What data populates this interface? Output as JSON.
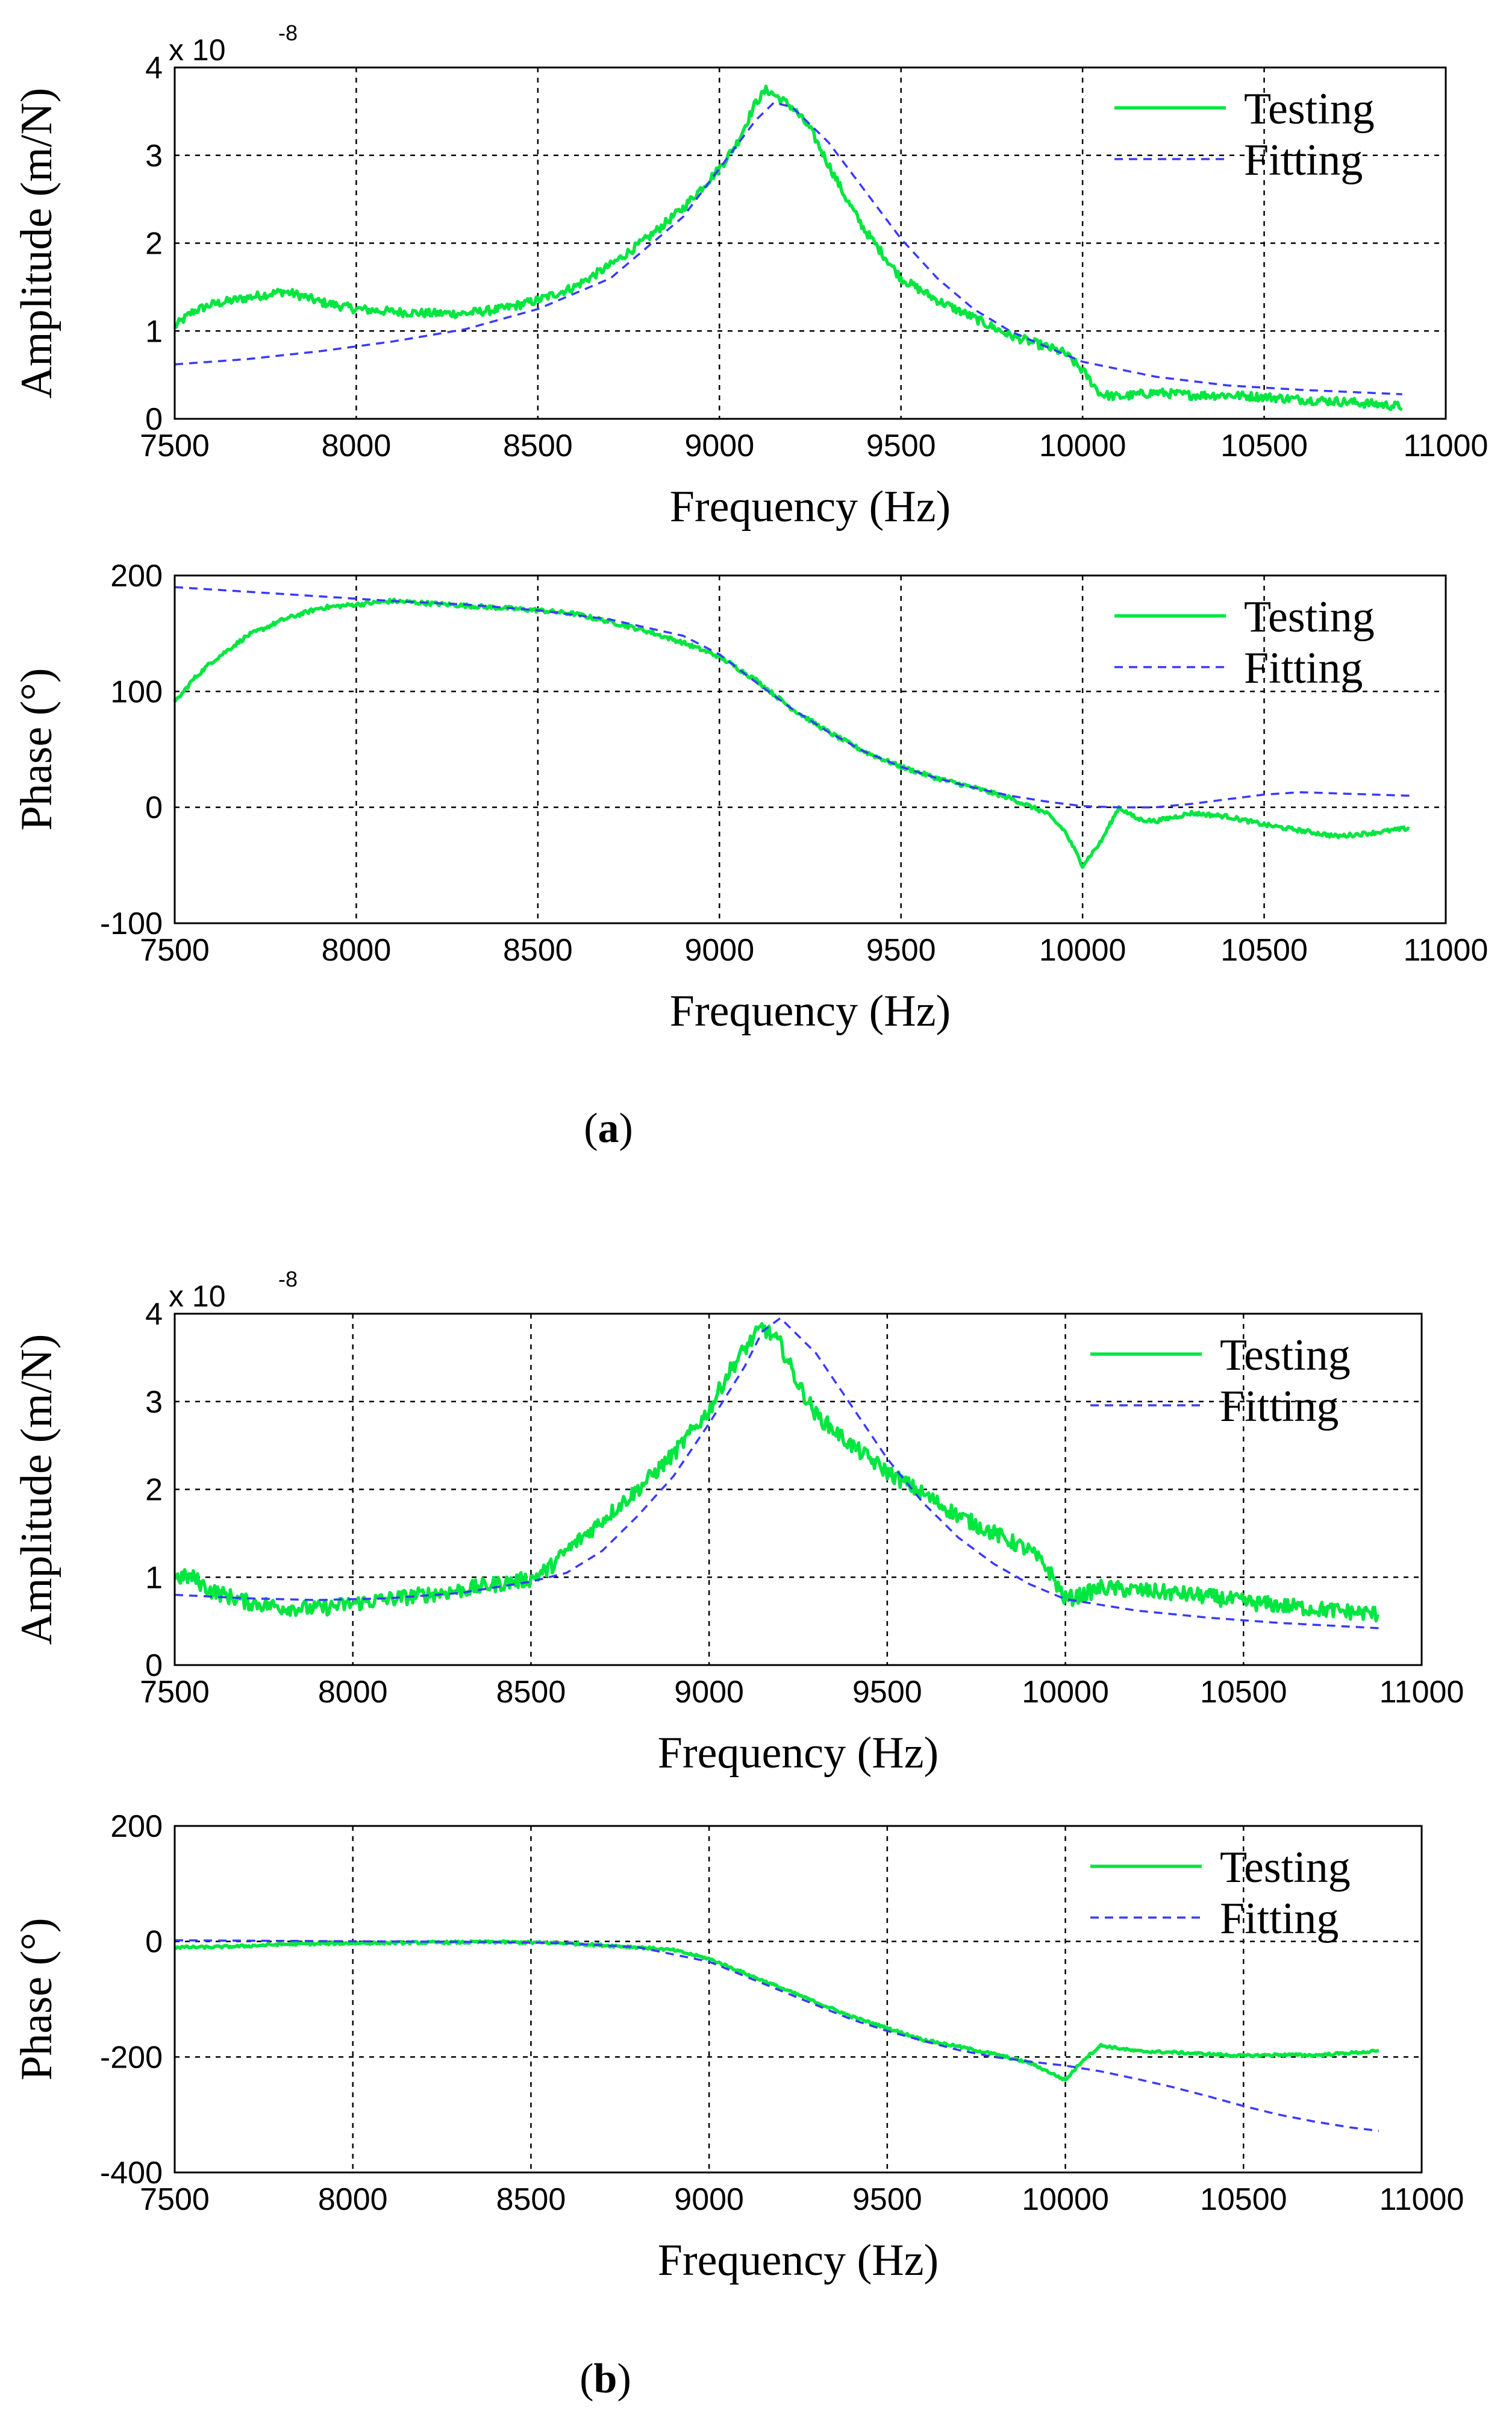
{
  "chart_data": [
    {
      "type": "line",
      "panel": "a",
      "subplot": "amplitude",
      "xlabel": "Frequency (Hz)",
      "ylabel": "Amplitude (m/N)",
      "y_exponent_label": "x 10",
      "y_exponent_power": "-8",
      "xlim": [
        7500,
        11000
      ],
      "ylim": [
        0,
        4
      ],
      "xticks": [
        "7500",
        "8000",
        "8500",
        "9000",
        "9500",
        "10000",
        "10500",
        "11000"
      ],
      "yticks": [
        "0",
        "1",
        "2",
        "3",
        "4"
      ],
      "grid": true,
      "legend_position": "top-right",
      "series": [
        {
          "name": "Testing",
          "style": "solid",
          "color": "#00e640",
          "noise": 0.05,
          "x": [
            7500,
            7550,
            7600,
            7700,
            7800,
            7850,
            7900,
            8000,
            8100,
            8200,
            8300,
            8400,
            8500,
            8600,
            8700,
            8800,
            8900,
            9000,
            9050,
            9100,
            9130,
            9200,
            9250,
            9300,
            9350,
            9400,
            9500,
            9600,
            9700,
            9800,
            9900,
            9950,
            10000,
            10050,
            10100,
            10200,
            10300,
            10400,
            10500,
            10600,
            10700,
            10800,
            10880
          ],
          "y": [
            1.05,
            1.22,
            1.3,
            1.38,
            1.45,
            1.4,
            1.33,
            1.25,
            1.22,
            1.2,
            1.2,
            1.25,
            1.35,
            1.5,
            1.75,
            2.05,
            2.4,
            2.85,
            3.15,
            3.6,
            3.75,
            3.55,
            3.3,
            2.9,
            2.5,
            2.15,
            1.6,
            1.35,
            1.15,
            0.95,
            0.82,
            0.75,
            0.55,
            0.28,
            0.25,
            0.3,
            0.27,
            0.27,
            0.25,
            0.22,
            0.2,
            0.17,
            0.14
          ]
        },
        {
          "name": "Fitting",
          "style": "dashed",
          "color": "#3a3aff",
          "noise": 0,
          "x": [
            7500,
            7700,
            7900,
            8100,
            8300,
            8500,
            8700,
            8900,
            9000,
            9100,
            9150,
            9200,
            9300,
            9400,
            9500,
            9600,
            9700,
            9800,
            9900,
            10000,
            10200,
            10400,
            10600,
            10880
          ],
          "y": [
            0.62,
            0.68,
            0.77,
            0.88,
            1.02,
            1.25,
            1.6,
            2.3,
            2.85,
            3.4,
            3.6,
            3.55,
            3.15,
            2.6,
            2.05,
            1.6,
            1.25,
            1.0,
            0.82,
            0.65,
            0.48,
            0.38,
            0.33,
            0.28
          ]
        }
      ]
    },
    {
      "type": "line",
      "panel": "a",
      "subplot": "phase",
      "xlabel": "Frequency (Hz)",
      "ylabel": "Phase (°)",
      "xlim": [
        7500,
        11000
      ],
      "ylim": [
        -100,
        200
      ],
      "xticks": [
        "7500",
        "8000",
        "8500",
        "9000",
        "9500",
        "10000",
        "10500",
        "11000"
      ],
      "yticks": [
        "-100",
        "0",
        "100",
        "200"
      ],
      "grid": true,
      "legend_position": "top-right",
      "series": [
        {
          "name": "Testing",
          "style": "solid",
          "color": "#00e640",
          "noise": 1.8,
          "x": [
            7500,
            7550,
            7600,
            7700,
            7800,
            7900,
            8000,
            8100,
            8200,
            8300,
            8400,
            8500,
            8600,
            8700,
            8800,
            8900,
            9000,
            9100,
            9200,
            9300,
            9400,
            9500,
            9600,
            9700,
            9800,
            9900,
            9950,
            10000,
            10050,
            10100,
            10150,
            10200,
            10300,
            10400,
            10500,
            10600,
            10700,
            10800,
            10900
          ],
          "y": [
            90,
            110,
            125,
            148,
            162,
            172,
            175,
            178,
            176,
            174,
            172,
            170,
            167,
            160,
            152,
            142,
            130,
            110,
            85,
            65,
            48,
            35,
            25,
            17,
            8,
            -5,
            -20,
            -50,
            -30,
            0,
            -10,
            -12,
            -5,
            -8,
            -15,
            -20,
            -25,
            -22,
            -18
          ]
        },
        {
          "name": "Fitting",
          "style": "dashed",
          "color": "#3a3aff",
          "noise": 0,
          "x": [
            7500,
            7700,
            7900,
            8100,
            8300,
            8500,
            8700,
            8900,
            9000,
            9100,
            9200,
            9300,
            9400,
            9500,
            9600,
            9700,
            9800,
            9900,
            10000,
            10100,
            10200,
            10300,
            10400,
            10500,
            10600,
            10700,
            10800,
            10900
          ],
          "y": [
            190,
            186,
            182,
            178,
            175,
            170,
            162,
            148,
            132,
            108,
            85,
            65,
            48,
            35,
            25,
            17,
            10,
            5,
            1,
            0,
            0,
            3,
            7,
            11,
            13,
            12,
            11,
            10
          ]
        }
      ]
    },
    {
      "type": "line",
      "panel": "b",
      "subplot": "amplitude",
      "xlabel": "Frequency (Hz)",
      "ylabel": "Amplitude (m/N)",
      "y_exponent_label": "x 10",
      "y_exponent_power": "-8",
      "xlim": [
        7500,
        11000
      ],
      "ylim": [
        0,
        4
      ],
      "xticks": [
        "7500",
        "8000",
        "8500",
        "9000",
        "9500",
        "10000",
        "10500",
        "11000"
      ],
      "yticks": [
        "0",
        "1",
        "2",
        "3",
        "4"
      ],
      "grid": true,
      "legend_position": "top-right",
      "series": [
        {
          "name": "Testing",
          "style": "solid",
          "color": "#00e640",
          "noise": 0.09,
          "x": [
            7500,
            7550,
            7600,
            7700,
            7800,
            7900,
            8000,
            8100,
            8200,
            8300,
            8400,
            8500,
            8550,
            8600,
            8700,
            8800,
            8900,
            9000,
            9050,
            9100,
            9150,
            9200,
            9250,
            9300,
            9400,
            9500,
            9600,
            9700,
            9800,
            9900,
            9950,
            10000,
            10050,
            10100,
            10200,
            10300,
            10400,
            10500,
            10600,
            10700,
            10880
          ],
          "y": [
            1.0,
            1.0,
            0.85,
            0.72,
            0.66,
            0.64,
            0.7,
            0.75,
            0.8,
            0.85,
            0.92,
            0.98,
            1.1,
            1.3,
            1.65,
            2.0,
            2.4,
            2.9,
            3.3,
            3.6,
            3.85,
            3.65,
            3.2,
            2.85,
            2.5,
            2.2,
            1.95,
            1.7,
            1.5,
            1.3,
            1.1,
            0.75,
            0.8,
            0.88,
            0.85,
            0.82,
            0.78,
            0.72,
            0.68,
            0.64,
            0.58
          ]
        },
        {
          "name": "Fitting",
          "style": "dashed",
          "color": "#3a3aff",
          "noise": 0,
          "x": [
            7500,
            7700,
            7900,
            8100,
            8300,
            8500,
            8600,
            8700,
            8800,
            8900,
            9000,
            9100,
            9150,
            9200,
            9300,
            9400,
            9500,
            9600,
            9700,
            9800,
            9900,
            10000,
            10200,
            10400,
            10600,
            10880
          ],
          "y": [
            0.8,
            0.76,
            0.74,
            0.76,
            0.82,
            0.95,
            1.05,
            1.3,
            1.7,
            2.15,
            2.75,
            3.4,
            3.8,
            3.95,
            3.55,
            2.95,
            2.35,
            1.85,
            1.45,
            1.15,
            0.92,
            0.75,
            0.62,
            0.54,
            0.48,
            0.42
          ]
        }
      ]
    },
    {
      "type": "line",
      "panel": "b",
      "subplot": "phase",
      "xlabel": "Frequency (Hz)",
      "ylabel": "Phase (°)",
      "xlim": [
        7500,
        11000
      ],
      "ylim": [
        -400,
        200
      ],
      "xticks": [
        "7500",
        "8000",
        "8500",
        "9000",
        "9500",
        "10000",
        "10500",
        "11000"
      ],
      "yticks": [
        "-400",
        "-200",
        "0",
        "200"
      ],
      "grid": true,
      "legend_position": "top-right",
      "series": [
        {
          "name": "Testing",
          "style": "solid",
          "color": "#00e640",
          "noise": 2.2,
          "x": [
            7500,
            7600,
            7700,
            7800,
            8000,
            8200,
            8400,
            8600,
            8800,
            8900,
            9000,
            9100,
            9200,
            9300,
            9400,
            9500,
            9600,
            9700,
            9800,
            9900,
            9950,
            10000,
            10050,
            10100,
            10200,
            10300,
            10400,
            10500,
            10600,
            10700,
            10800,
            10880
          ],
          "y": [
            -10,
            -10,
            -8,
            -5,
            -3,
            -2,
            -1,
            -3,
            -10,
            -15,
            -30,
            -55,
            -80,
            -105,
            -130,
            -150,
            -170,
            -182,
            -195,
            -210,
            -225,
            -240,
            -205,
            -180,
            -190,
            -192,
            -195,
            -198,
            -196,
            -197,
            -193,
            -190
          ]
        },
        {
          "name": "Fitting",
          "style": "dashed",
          "color": "#3a3aff",
          "noise": 0,
          "x": [
            7500,
            7800,
            8100,
            8400,
            8600,
            8800,
            9000,
            9100,
            9200,
            9300,
            9400,
            9500,
            9600,
            9700,
            9800,
            9900,
            10000,
            10100,
            10200,
            10300,
            10400,
            10500,
            10600,
            10700,
            10800,
            10880
          ],
          "y": [
            2,
            1,
            0,
            -1,
            -3,
            -10,
            -35,
            -60,
            -85,
            -110,
            -135,
            -155,
            -172,
            -188,
            -200,
            -208,
            -215,
            -225,
            -238,
            -252,
            -268,
            -285,
            -300,
            -312,
            -322,
            -328
          ]
        }
      ]
    }
  ],
  "captions": {
    "a": "a",
    "b": "b"
  }
}
